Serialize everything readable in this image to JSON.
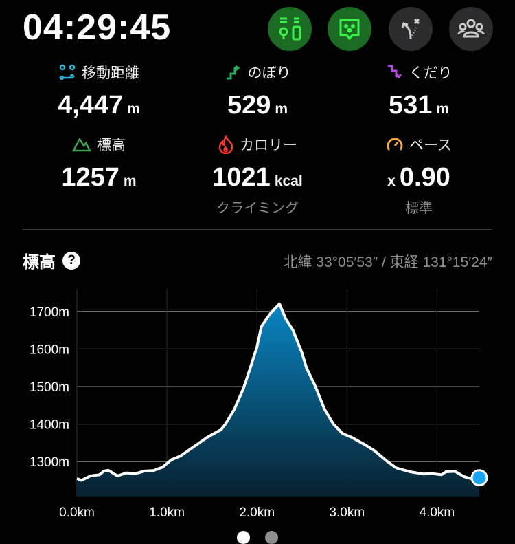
{
  "timer": "04:29:45",
  "buttons": [
    {
      "name": "map-pin-battery-icon",
      "active": true
    },
    {
      "name": "chat-face-icon",
      "active": true
    },
    {
      "name": "route-off-icon",
      "active": false
    },
    {
      "name": "group-icon",
      "active": false
    }
  ],
  "stats": [
    {
      "label": "移動距離",
      "value": "4,447",
      "unit": "m",
      "icon": "route-icon",
      "color": "#2fb4d8",
      "sub": ""
    },
    {
      "label": "のぼり",
      "value": "529",
      "unit": "m",
      "icon": "ascent-icon",
      "color": "#22b15a",
      "sub": ""
    },
    {
      "label": "くだり",
      "value": "531",
      "unit": "m",
      "icon": "descent-icon",
      "color": "#b34fe0",
      "sub": ""
    },
    {
      "label": "標高",
      "value": "1257",
      "unit": "m",
      "icon": "mountain-icon",
      "color": "#3fa34d",
      "sub": ""
    },
    {
      "label": "カロリー",
      "value": "1021",
      "unit": "kcal",
      "icon": "flame-icon",
      "color": "#ff3b30",
      "sub": "クライミング"
    },
    {
      "label": "ペース",
      "value": "0.90",
      "prefix": "x",
      "unit": "",
      "icon": "speedometer-icon",
      "color": "#f0a93a",
      "sub": "標準"
    }
  ],
  "section": {
    "title": "標高",
    "help": "?",
    "coords": "北緯 33°05′53″ / 東経 131°15′24″"
  },
  "chart_data": {
    "type": "area",
    "xlabel": "",
    "ylabel": "",
    "xlim": [
      0,
      4.47
    ],
    "ylim": [
      1207,
      1760
    ],
    "x_ticks": [
      "0.0km",
      "1.0km",
      "2.0km",
      "3.0km",
      "4.0km"
    ],
    "x_tick_values": [
      0,
      1,
      2,
      3,
      4
    ],
    "y_ticks": [
      "1300m",
      "1400m",
      "1500m",
      "1600m",
      "1700m"
    ],
    "y_tick_values": [
      1300,
      1400,
      1500,
      1600,
      1700
    ],
    "grid": true,
    "fill_color": "#0a86c4",
    "line_color": "#ffffff",
    "marker_color": "#1aa3f0",
    "current": {
      "x": 4.47,
      "y": 1257
    },
    "points": [
      [
        0,
        1255
      ],
      [
        0.05,
        1250
      ],
      [
        0.15,
        1262
      ],
      [
        0.25,
        1265
      ],
      [
        0.3,
        1275
      ],
      [
        0.35,
        1277
      ],
      [
        0.45,
        1262
      ],
      [
        0.55,
        1270
      ],
      [
        0.65,
        1268
      ],
      [
        0.75,
        1275
      ],
      [
        0.85,
        1276
      ],
      [
        0.95,
        1285
      ],
      [
        1.05,
        1305
      ],
      [
        1.15,
        1315
      ],
      [
        1.3,
        1340
      ],
      [
        1.45,
        1365
      ],
      [
        1.6,
        1385
      ],
      [
        1.65,
        1400
      ],
      [
        1.75,
        1440
      ],
      [
        1.85,
        1495
      ],
      [
        1.92,
        1545
      ],
      [
        2.0,
        1605
      ],
      [
        2.05,
        1660
      ],
      [
        2.15,
        1695
      ],
      [
        2.25,
        1720
      ],
      [
        2.32,
        1680
      ],
      [
        2.4,
        1650
      ],
      [
        2.5,
        1590
      ],
      [
        2.55,
        1550
      ],
      [
        2.65,
        1500
      ],
      [
        2.75,
        1440
      ],
      [
        2.85,
        1400
      ],
      [
        2.95,
        1375
      ],
      [
        3.05,
        1365
      ],
      [
        3.2,
        1345
      ],
      [
        3.3,
        1330
      ],
      [
        3.45,
        1300
      ],
      [
        3.55,
        1283
      ],
      [
        3.7,
        1273
      ],
      [
        3.85,
        1267
      ],
      [
        3.95,
        1268
      ],
      [
        4.05,
        1265
      ],
      [
        4.1,
        1273
      ],
      [
        4.2,
        1274
      ],
      [
        4.3,
        1260
      ],
      [
        4.42,
        1252
      ],
      [
        4.47,
        1257
      ]
    ]
  },
  "pager": {
    "pages": 2,
    "current": 1
  }
}
